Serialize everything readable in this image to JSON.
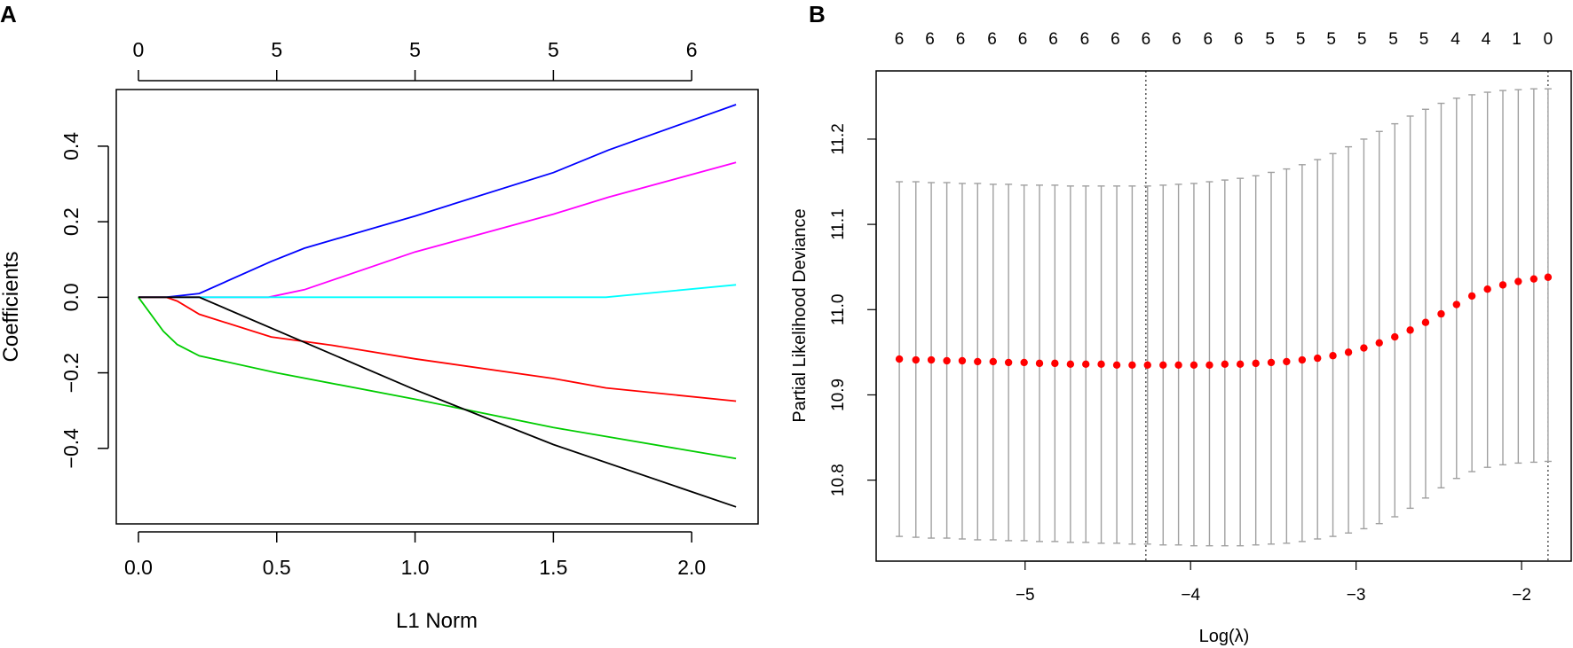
{
  "figure": {
    "panel_a_label": "A",
    "panel_b_label": "B"
  },
  "chart_data": [
    {
      "panel": "A",
      "type": "line",
      "title": "",
      "xlabel": "L1 Norm",
      "ylabel": "Coefficients",
      "xlim": [
        -0.08,
        2.24
      ],
      "ylim": [
        -0.6,
        0.55
      ],
      "x_ticks": [
        0.0,
        0.5,
        1.0,
        1.5,
        2.0
      ],
      "x_tick_labels": [
        "0.0",
        "0.5",
        "1.0",
        "1.5",
        "2.0"
      ],
      "y_ticks": [
        -0.4,
        -0.2,
        0.0,
        0.2,
        0.4
      ],
      "y_tick_labels": [
        "−0.4",
        "−0.2",
        "0.0",
        "0.2",
        "0.4"
      ],
      "top_ticks": [
        0.0,
        0.5,
        1.0,
        1.5,
        2.0
      ],
      "top_tick_labels": [
        "0",
        "5",
        "5",
        "5",
        "6"
      ],
      "series": [
        {
          "name": "blue",
          "color": "#0000ff",
          "points": [
            [
              0.0,
              0.0
            ],
            [
              0.1,
              0.0
            ],
            [
              0.22,
              0.01
            ],
            [
              0.48,
              0.095
            ],
            [
              0.6,
              0.13
            ],
            [
              1.0,
              0.215
            ],
            [
              1.5,
              0.33
            ],
            [
              1.7,
              0.39
            ],
            [
              2.16,
              0.51
            ]
          ]
        },
        {
          "name": "magenta",
          "color": "#ff00ff",
          "points": [
            [
              0.0,
              0.0
            ],
            [
              0.47,
              0.0
            ],
            [
              0.6,
              0.02
            ],
            [
              1.0,
              0.12
            ],
            [
              1.5,
              0.22
            ],
            [
              1.7,
              0.265
            ],
            [
              2.16,
              0.357
            ]
          ]
        },
        {
          "name": "cyan",
          "color": "#00ffff",
          "points": [
            [
              0.0,
              0.0
            ],
            [
              1.69,
              0.0
            ],
            [
              2.16,
              0.033
            ]
          ]
        },
        {
          "name": "red",
          "color": "#ff0000",
          "points": [
            [
              0.0,
              0.0
            ],
            [
              0.1,
              0.0
            ],
            [
              0.14,
              -0.01
            ],
            [
              0.22,
              -0.045
            ],
            [
              0.48,
              -0.105
            ],
            [
              0.7,
              -0.127
            ],
            [
              1.0,
              -0.163
            ],
            [
              1.5,
              -0.215
            ],
            [
              1.69,
              -0.24
            ],
            [
              2.16,
              -0.275
            ]
          ]
        },
        {
          "name": "green",
          "color": "#00cc00",
          "points": [
            [
              0.0,
              0.0
            ],
            [
              0.09,
              -0.09
            ],
            [
              0.14,
              -0.125
            ],
            [
              0.22,
              -0.155
            ],
            [
              0.5,
              -0.2
            ],
            [
              1.0,
              -0.27
            ],
            [
              1.5,
              -0.345
            ],
            [
              2.16,
              -0.427
            ]
          ]
        },
        {
          "name": "black",
          "color": "#000000",
          "points": [
            [
              0.0,
              0.0
            ],
            [
              0.22,
              0.0
            ],
            [
              1.0,
              -0.245
            ],
            [
              1.5,
              -0.39
            ],
            [
              2.16,
              -0.555
            ]
          ]
        }
      ]
    },
    {
      "panel": "B",
      "type": "scatter",
      "title": "",
      "xlabel": "Log(λ)",
      "ylabel": "Partial Likelihood Deviance",
      "xlim": [
        -5.9,
        -1.7
      ],
      "ylim": [
        10.705,
        11.28
      ],
      "x_ticks": [
        -5,
        -4,
        -3,
        -2
      ],
      "x_tick_labels": [
        "−5",
        "−4",
        "−3",
        "−2"
      ],
      "y_ticks": [
        10.8,
        10.9,
        11.0,
        11.1,
        11.2
      ],
      "y_tick_labels": [
        "10.8",
        "10.9",
        "11.0",
        "11.1",
        "11.2"
      ],
      "top_labels": [
        "6",
        "6",
        "6",
        "6",
        "6",
        "6",
        "6",
        "6",
        "6",
        "6",
        "6",
        "6",
        "5",
        "5",
        "5",
        "5",
        "5",
        "5",
        "4",
        "4",
        "1",
        "0"
      ],
      "top_label_xs": [
        -5.76,
        -5.575,
        -5.39,
        -5.2,
        -5.015,
        -4.83,
        -4.64,
        -4.455,
        -4.27,
        -4.085,
        -3.895,
        -3.71,
        -3.52,
        -3.335,
        -3.15,
        -2.965,
        -2.775,
        -2.59,
        -2.4,
        -2.215,
        -2.03,
        -1.84
      ],
      "vlines": [
        -4.27,
        -1.84
      ],
      "log_lambda": [
        -5.76,
        -5.66,
        -5.567,
        -5.473,
        -5.38,
        -5.287,
        -5.193,
        -5.1,
        -5.006,
        -4.913,
        -4.82,
        -4.726,
        -4.633,
        -4.54,
        -4.446,
        -4.353,
        -4.26,
        -4.166,
        -4.073,
        -3.98,
        -3.886,
        -3.793,
        -3.7,
        -3.606,
        -3.513,
        -3.42,
        -3.326,
        -3.233,
        -3.14,
        -3.046,
        -2.953,
        -2.86,
        -2.766,
        -2.673,
        -2.58,
        -2.486,
        -2.393,
        -2.3,
        -2.206,
        -2.113,
        -2.02,
        -1.926,
        -1.84
      ],
      "deviance": [
        10.942,
        10.941,
        10.941,
        10.94,
        10.94,
        10.939,
        10.939,
        10.938,
        10.938,
        10.937,
        10.937,
        10.936,
        10.936,
        10.936,
        10.935,
        10.935,
        10.935,
        10.935,
        10.935,
        10.935,
        10.935,
        10.936,
        10.936,
        10.937,
        10.938,
        10.939,
        10.941,
        10.943,
        10.946,
        10.95,
        10.955,
        10.961,
        10.968,
        10.976,
        10.985,
        10.995,
        11.006,
        11.016,
        11.024,
        11.029,
        11.033,
        11.036,
        11.038
      ],
      "upper": [
        11.15,
        11.15,
        11.149,
        11.149,
        11.148,
        11.148,
        11.147,
        11.147,
        11.146,
        11.146,
        11.146,
        11.145,
        11.145,
        11.145,
        11.145,
        11.145,
        11.145,
        11.146,
        11.147,
        11.148,
        11.15,
        11.152,
        11.154,
        11.157,
        11.161,
        11.165,
        11.17,
        11.176,
        11.183,
        11.191,
        11.2,
        11.209,
        11.218,
        11.227,
        11.235,
        11.242,
        11.248,
        11.252,
        11.255,
        11.257,
        11.258,
        11.259,
        11.259
      ],
      "lower": [
        10.734,
        10.733,
        10.732,
        10.732,
        10.731,
        10.73,
        10.73,
        10.729,
        10.729,
        10.728,
        10.728,
        10.727,
        10.727,
        10.726,
        10.726,
        10.725,
        10.725,
        10.724,
        10.724,
        10.723,
        10.723,
        10.723,
        10.723,
        10.724,
        10.725,
        10.726,
        10.728,
        10.731,
        10.734,
        10.738,
        10.743,
        10.749,
        10.757,
        10.767,
        10.779,
        10.791,
        10.802,
        10.81,
        10.815,
        10.818,
        10.82,
        10.821,
        10.822
      ],
      "point_color": "#ff0000",
      "error_bar_color": "#a0a0a0"
    }
  ]
}
